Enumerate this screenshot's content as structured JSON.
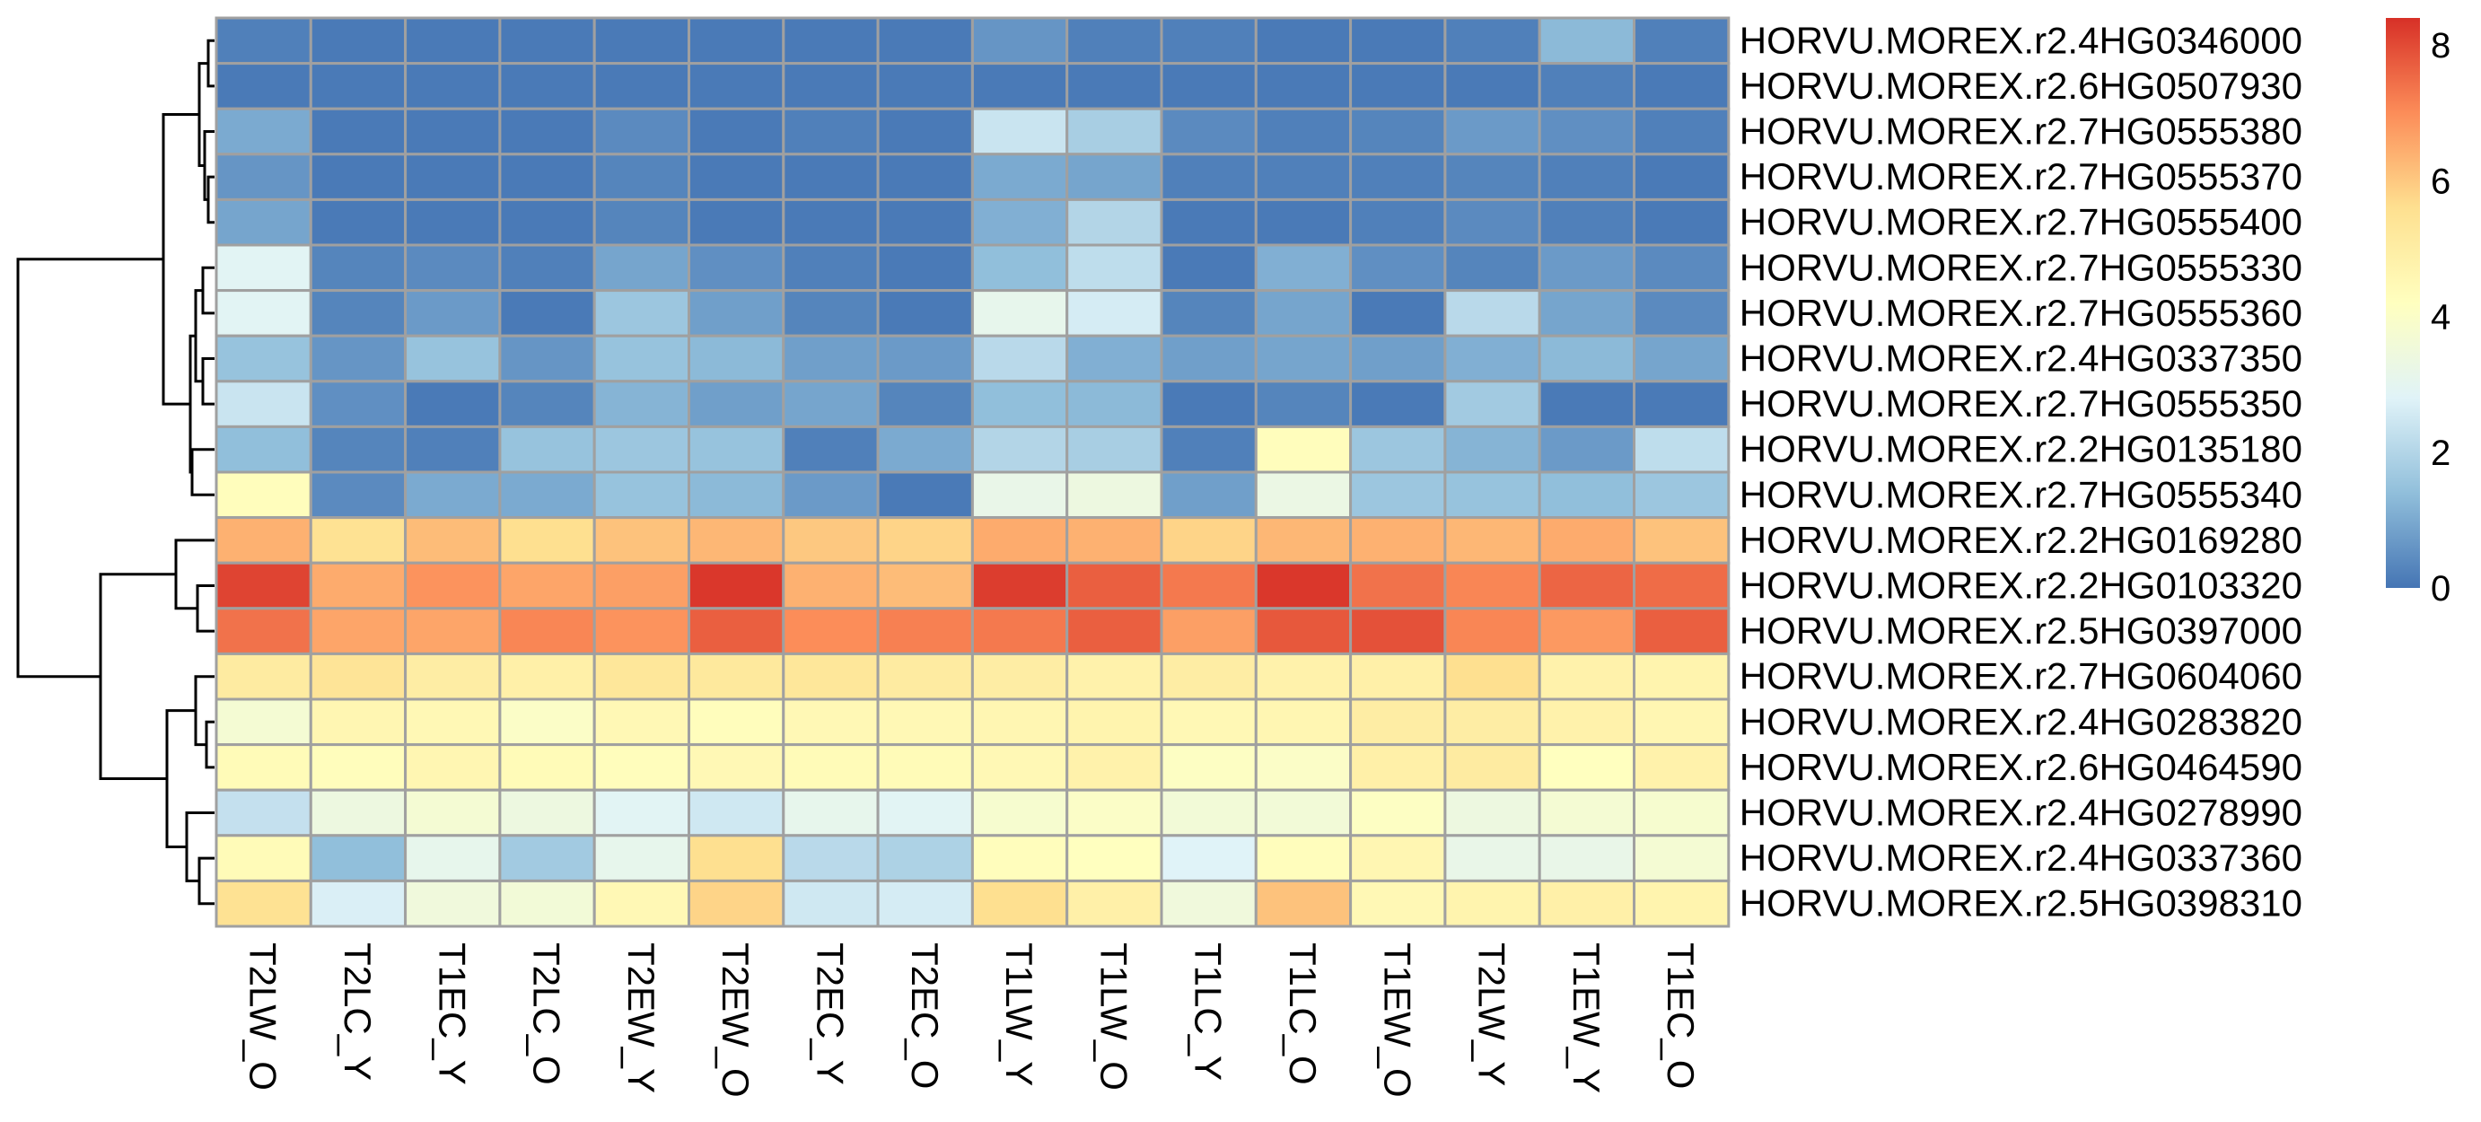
{
  "chart_data": {
    "type": "heatmap",
    "columns": [
      "T2LW_O",
      "T2LC_Y",
      "T1EC_Y",
      "T2LC_O",
      "T2EW_Y",
      "T2EW_O",
      "T2EC_Y",
      "T2EC_O",
      "T1LW_Y",
      "T1LW_O",
      "T1LC_Y",
      "T1LC_O",
      "T1EW_O",
      "T2LW_Y",
      "T1EW_Y",
      "T1EC_O"
    ],
    "rows": [
      "HORVU.MOREX.r2.4HG0346000",
      "HORVU.MOREX.r2.6HG0507930",
      "HORVU.MOREX.r2.7HG0555380",
      "HORVU.MOREX.r2.7HG0555370",
      "HORVU.MOREX.r2.7HG0555400",
      "HORVU.MOREX.r2.7HG0555330",
      "HORVU.MOREX.r2.7HG0555360",
      "HORVU.MOREX.r2.4HG0337350",
      "HORVU.MOREX.r2.7HG0555350",
      "HORVU.MOREX.r2.2HG0135180",
      "HORVU.MOREX.r2.7HG0555340",
      "HORVU.MOREX.r2.2HG0169280",
      "HORVU.MOREX.r2.2HG0103320",
      "HORVU.MOREX.r2.5HG0397000",
      "HORVU.MOREX.r2.7HG0604060",
      "HORVU.MOREX.r2.4HG0283820",
      "HORVU.MOREX.r2.6HG0464590",
      "HORVU.MOREX.r2.4HG0278990",
      "HORVU.MOREX.r2.4HG0337360",
      "HORVU.MOREX.r2.5HG0398310"
    ],
    "values": [
      [
        0.2,
        0.1,
        0.1,
        0.1,
        0.1,
        0.1,
        0.1,
        0.1,
        0.6,
        0.2,
        0.2,
        0.1,
        0.1,
        0.2,
        1.3,
        0.2
      ],
      [
        0.1,
        0.1,
        0.1,
        0.1,
        0.1,
        0.1,
        0.1,
        0.1,
        0.1,
        0.1,
        0.1,
        0.1,
        0.1,
        0.1,
        0.2,
        0.1
      ],
      [
        1.0,
        0.1,
        0.1,
        0.1,
        0.4,
        0.1,
        0.2,
        0.1,
        2.4,
        1.8,
        0.4,
        0.2,
        0.3,
        0.7,
        0.5,
        0.2
      ],
      [
        0.6,
        0.1,
        0.1,
        0.1,
        0.3,
        0.1,
        0.1,
        0.1,
        1.0,
        0.9,
        0.2,
        0.2,
        0.2,
        0.3,
        0.2,
        0.1
      ],
      [
        0.9,
        0.1,
        0.1,
        0.1,
        0.3,
        0.1,
        0.1,
        0.1,
        1.1,
        2.0,
        0.1,
        0.1,
        0.2,
        0.4,
        0.2,
        0.1
      ],
      [
        2.9,
        0.3,
        0.4,
        0.2,
        0.9,
        0.5,
        0.2,
        0.1,
        1.4,
        2.2,
        0.1,
        1.1,
        0.5,
        0.3,
        0.7,
        0.4
      ],
      [
        2.9,
        0.3,
        0.7,
        0.1,
        1.6,
        0.8,
        0.3,
        0.1,
        3.1,
        2.6,
        0.3,
        0.9,
        0.1,
        2.1,
        0.9,
        0.4
      ],
      [
        1.5,
        0.6,
        1.5,
        0.6,
        1.5,
        1.3,
        0.8,
        0.7,
        2.1,
        1.1,
        0.8,
        0.9,
        0.8,
        1.1,
        1.3,
        0.9
      ],
      [
        2.4,
        0.5,
        0.1,
        0.3,
        1.2,
        0.8,
        0.9,
        0.3,
        1.4,
        1.3,
        0.1,
        0.3,
        0.1,
        1.7,
        0.1,
        0.1
      ],
      [
        1.4,
        0.3,
        0.2,
        1.5,
        1.6,
        1.5,
        0.2,
        1.0,
        2.0,
        1.8,
        0.2,
        4.3,
        1.6,
        1.2,
        0.7,
        2.2
      ],
      [
        4.3,
        0.4,
        1.0,
        1.0,
        1.5,
        1.3,
        0.7,
        0.1,
        3.2,
        3.4,
        0.8,
        3.3,
        1.6,
        1.5,
        1.4,
        1.6
      ],
      [
        6.4,
        5.5,
        6.2,
        5.6,
        6.1,
        6.3,
        6.0,
        5.8,
        6.5,
        6.4,
        5.8,
        6.3,
        6.4,
        6.3,
        6.5,
        6.1
      ],
      [
        8.1,
        6.5,
        6.9,
        6.6,
        6.7,
        8.3,
        6.4,
        6.2,
        8.2,
        7.7,
        7.3,
        8.3,
        7.4,
        7.1,
        7.6,
        7.5
      ],
      [
        7.4,
        6.6,
        6.6,
        7.1,
        6.9,
        7.7,
        7.0,
        7.2,
        7.3,
        7.7,
        6.7,
        7.8,
        7.9,
        7.1,
        6.8,
        7.7
      ],
      [
        5.1,
        5.4,
        5.0,
        4.9,
        5.3,
        5.2,
        5.3,
        5.1,
        5.0,
        4.8,
        5.0,
        4.8,
        4.9,
        5.6,
        4.8,
        4.7
      ],
      [
        3.7,
        4.6,
        4.5,
        4.0,
        4.5,
        4.3,
        4.5,
        4.5,
        4.6,
        4.7,
        4.5,
        4.6,
        5.0,
        5.0,
        4.8,
        4.6
      ],
      [
        4.4,
        4.3,
        4.6,
        4.4,
        4.3,
        4.5,
        4.4,
        4.4,
        4.5,
        4.8,
        4.1,
        4.0,
        4.9,
        5.1,
        4.2,
        4.8
      ],
      [
        2.3,
        3.4,
        3.7,
        3.4,
        2.9,
        2.5,
        3.1,
        2.9,
        3.8,
        4.0,
        3.6,
        3.6,
        4.1,
        3.4,
        3.7,
        3.8
      ],
      [
        4.4,
        1.4,
        3.1,
        1.7,
        3.1,
        5.6,
        2.1,
        1.9,
        4.3,
        4.2,
        2.8,
        4.3,
        4.6,
        3.2,
        3.2,
        3.7
      ],
      [
        5.5,
        2.7,
        3.5,
        3.6,
        4.5,
        5.8,
        2.5,
        2.6,
        5.6,
        4.9,
        3.5,
        6.1,
        4.5,
        4.7,
        4.9,
        4.7
      ]
    ],
    "color_scale": {
      "min": 0,
      "max": 8.4,
      "ticks": [
        0,
        2,
        4,
        6,
        8
      ],
      "stops": [
        "#4575b4",
        "#91bfdb",
        "#e0f3f8",
        "#ffffbf",
        "#fee090",
        "#fc8d59",
        "#d73027"
      ]
    },
    "legend_position": "right",
    "cell_border_color": "#a0a0a0",
    "row_dendrogram": true,
    "col_dendrogram": false
  }
}
